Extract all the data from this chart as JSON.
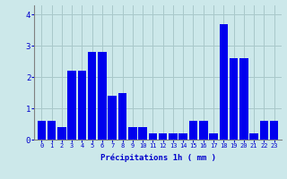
{
  "hours": [
    0,
    1,
    2,
    3,
    4,
    5,
    6,
    7,
    8,
    9,
    10,
    11,
    12,
    13,
    14,
    15,
    16,
    17,
    18,
    19,
    20,
    21,
    22,
    23
  ],
  "values": [
    0.6,
    0.6,
    0.4,
    2.2,
    2.2,
    2.8,
    2.8,
    1.4,
    1.5,
    0.4,
    0.4,
    0.2,
    0.2,
    0.2,
    0.2,
    0.6,
    0.6,
    0.2,
    3.7,
    2.6,
    2.6,
    0.2,
    0.6,
    0.6
  ],
  "bar_color": "#0000ee",
  "background_color": "#cce8ea",
  "grid_color": "#a8c8ca",
  "text_color": "#0000cc",
  "xlabel": "Précipitations 1h ( mm )",
  "ylim": [
    0,
    4.3
  ],
  "yticks": [
    0,
    1,
    2,
    3,
    4
  ]
}
